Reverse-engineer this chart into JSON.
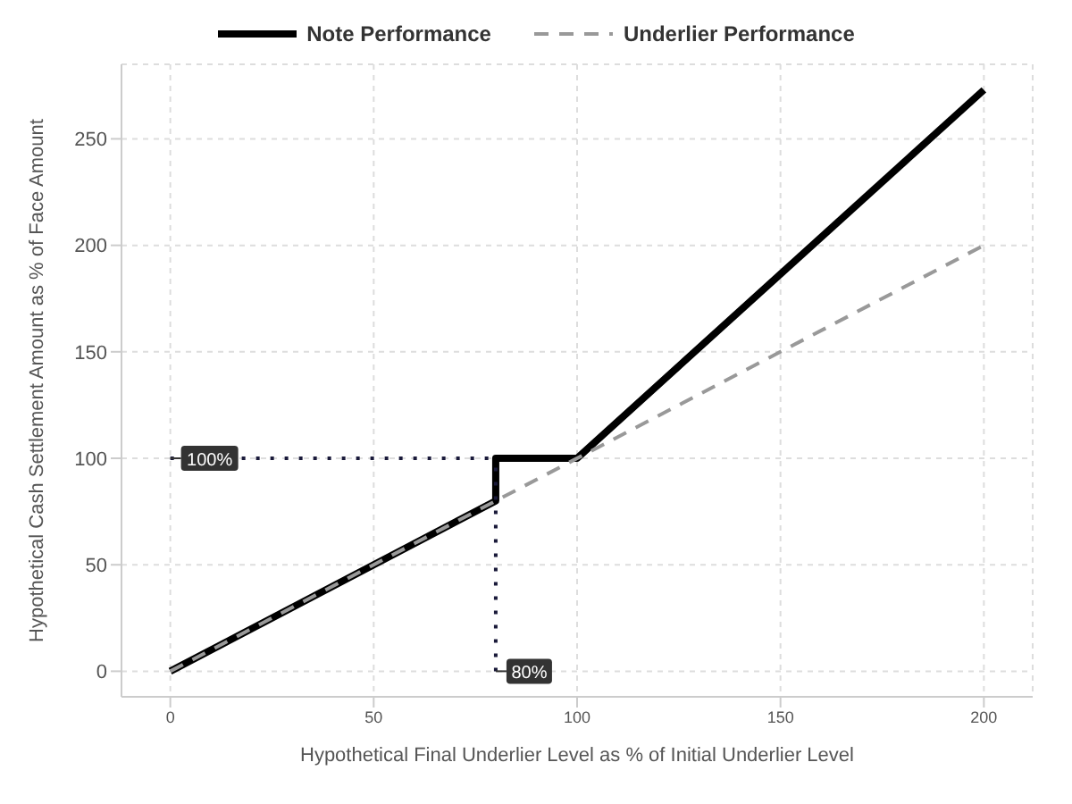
{
  "chart_data": {
    "type": "line",
    "xlabel": "Hypothetical Final Underlier Level as % of Initial Underlier Level",
    "ylabel": "Hypothetical Cash Settlement Amount as % of Face Amount",
    "xlim": [
      -12,
      212
    ],
    "xticks": [
      0,
      50,
      100,
      150,
      200
    ],
    "ylim": [
      -12,
      285
    ],
    "yticks": [
      0,
      50,
      100,
      150,
      200,
      250
    ],
    "grid": true,
    "legend": "top",
    "marker": "none",
    "series": [
      {
        "name": "Note Performance",
        "color": "#000000",
        "line_style": "solid",
        "x": [
          0,
          80,
          80,
          100,
          200
        ],
        "values": [
          0,
          80,
          100,
          100,
          273
        ]
      },
      {
        "name": "Underlier Performance",
        "color": "#999999",
        "line_style": "dashed",
        "x": [
          0,
          200
        ],
        "values": [
          0,
          200
        ]
      },
      {
        "color": "#1a1a3a",
        "line_style": "dotted",
        "x": [
          0,
          80
        ],
        "values": [
          100,
          100
        ]
      },
      {
        "color": "#1a1a3a",
        "line_style": "dotted",
        "x": [
          80,
          80
        ],
        "values": [
          0,
          100
        ]
      }
    ],
    "annotations": [
      {
        "text": "100%",
        "x": 0,
        "y": 100
      },
      {
        "text": "80%",
        "x": 80,
        "y": 0
      }
    ]
  }
}
